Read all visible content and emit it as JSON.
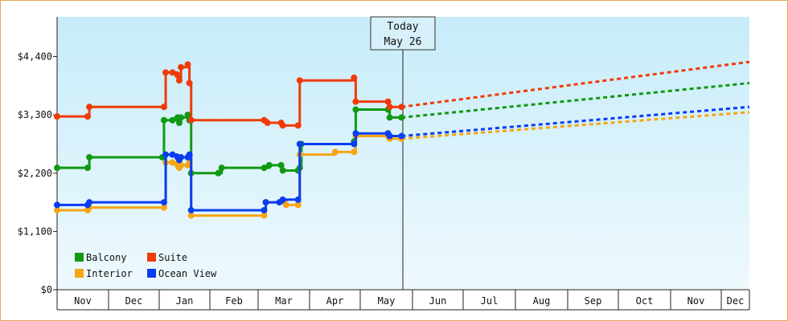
{
  "chart_data": {
    "type": "line",
    "currency_prefix": "$",
    "y_ticks": [
      0,
      1100,
      2200,
      3300,
      4400
    ],
    "ylim": [
      0,
      5150
    ],
    "month_labels": [
      "Nov",
      "Dec",
      "Jan",
      "Feb",
      "Mar",
      "Apr",
      "May",
      "Jun",
      "Jul",
      "Aug",
      "Sep",
      "Oct",
      "Nov",
      "Dec"
    ],
    "x_domain_days": [
      0,
      408
    ],
    "today": {
      "line1": "Today",
      "line2": "May 26",
      "day": 203
    },
    "legend": {
      "placement": "bottom-left",
      "columns": 2
    },
    "grid": false,
    "series": [
      {
        "name": "Balcony",
        "color": "#0f9a12",
        "points": [
          [
            0,
            2300
          ],
          [
            18,
            2300
          ],
          [
            19,
            2500
          ],
          [
            62,
            2500
          ],
          [
            63,
            3200
          ],
          [
            68,
            3200
          ],
          [
            71,
            3250
          ],
          [
            72,
            3150
          ],
          [
            73,
            3250
          ],
          [
            77,
            3300
          ],
          [
            78,
            3200
          ],
          [
            79,
            2200
          ],
          [
            95,
            2200
          ],
          [
            97,
            2300
          ],
          [
            122,
            2300
          ],
          [
            125,
            2350
          ],
          [
            132,
            2350
          ],
          [
            133,
            2250
          ],
          [
            142,
            2250
          ],
          [
            143,
            2300
          ],
          [
            144,
            2750
          ],
          [
            175,
            2800
          ],
          [
            176,
            3400
          ],
          [
            195,
            3400
          ],
          [
            196,
            3250
          ],
          [
            203,
            3250
          ]
        ],
        "projection_end": 3900
      },
      {
        "name": "Suite",
        "color": "#f03a07",
        "points": [
          [
            0,
            3270
          ],
          [
            18,
            3270
          ],
          [
            19,
            3450
          ],
          [
            63,
            3450
          ],
          [
            64,
            4100
          ],
          [
            68,
            4100
          ],
          [
            71,
            4050
          ],
          [
            72,
            3950
          ],
          [
            73,
            4200
          ],
          [
            77,
            4250
          ],
          [
            78,
            3900
          ],
          [
            79,
            3200
          ],
          [
            122,
            3200
          ],
          [
            124,
            3150
          ],
          [
            132,
            3150
          ],
          [
            133,
            3100
          ],
          [
            142,
            3100
          ],
          [
            143,
            3950
          ],
          [
            175,
            4000
          ],
          [
            176,
            3550
          ],
          [
            195,
            3550
          ],
          [
            196,
            3450
          ],
          [
            203,
            3450
          ]
        ],
        "projection_end": 4300
      },
      {
        "name": "Interior",
        "color": "#f5a515",
        "points": [
          [
            0,
            1500
          ],
          [
            18,
            1500
          ],
          [
            19,
            1550
          ],
          [
            63,
            1550
          ],
          [
            64,
            2400
          ],
          [
            68,
            2400
          ],
          [
            71,
            2350
          ],
          [
            72,
            2300
          ],
          [
            73,
            2350
          ],
          [
            77,
            2350
          ],
          [
            78,
            2400
          ],
          [
            79,
            1400
          ],
          [
            122,
            1400
          ],
          [
            123,
            1650
          ],
          [
            134,
            1650
          ],
          [
            135,
            1600
          ],
          [
            142,
            1600
          ],
          [
            143,
            2550
          ],
          [
            164,
            2600
          ],
          [
            175,
            2600
          ],
          [
            176,
            2900
          ],
          [
            195,
            2900
          ],
          [
            196,
            2850
          ],
          [
            203,
            2850
          ]
        ],
        "projection_end": 3350
      },
      {
        "name": "Ocean View",
        "color": "#0a3cf0",
        "points": [
          [
            0,
            1600
          ],
          [
            18,
            1600
          ],
          [
            19,
            1650
          ],
          [
            63,
            1650
          ],
          [
            64,
            2550
          ],
          [
            68,
            2550
          ],
          [
            71,
            2500
          ],
          [
            72,
            2450
          ],
          [
            73,
            2500
          ],
          [
            77,
            2500
          ],
          [
            78,
            2550
          ],
          [
            79,
            1500
          ],
          [
            122,
            1500
          ],
          [
            123,
            1650
          ],
          [
            131,
            1650
          ],
          [
            133,
            1700
          ],
          [
            142,
            1700
          ],
          [
            143,
            2750
          ],
          [
            175,
            2750
          ],
          [
            176,
            2950
          ],
          [
            195,
            2950
          ],
          [
            196,
            2900
          ],
          [
            203,
            2900
          ]
        ],
        "projection_end": 3450
      }
    ]
  }
}
